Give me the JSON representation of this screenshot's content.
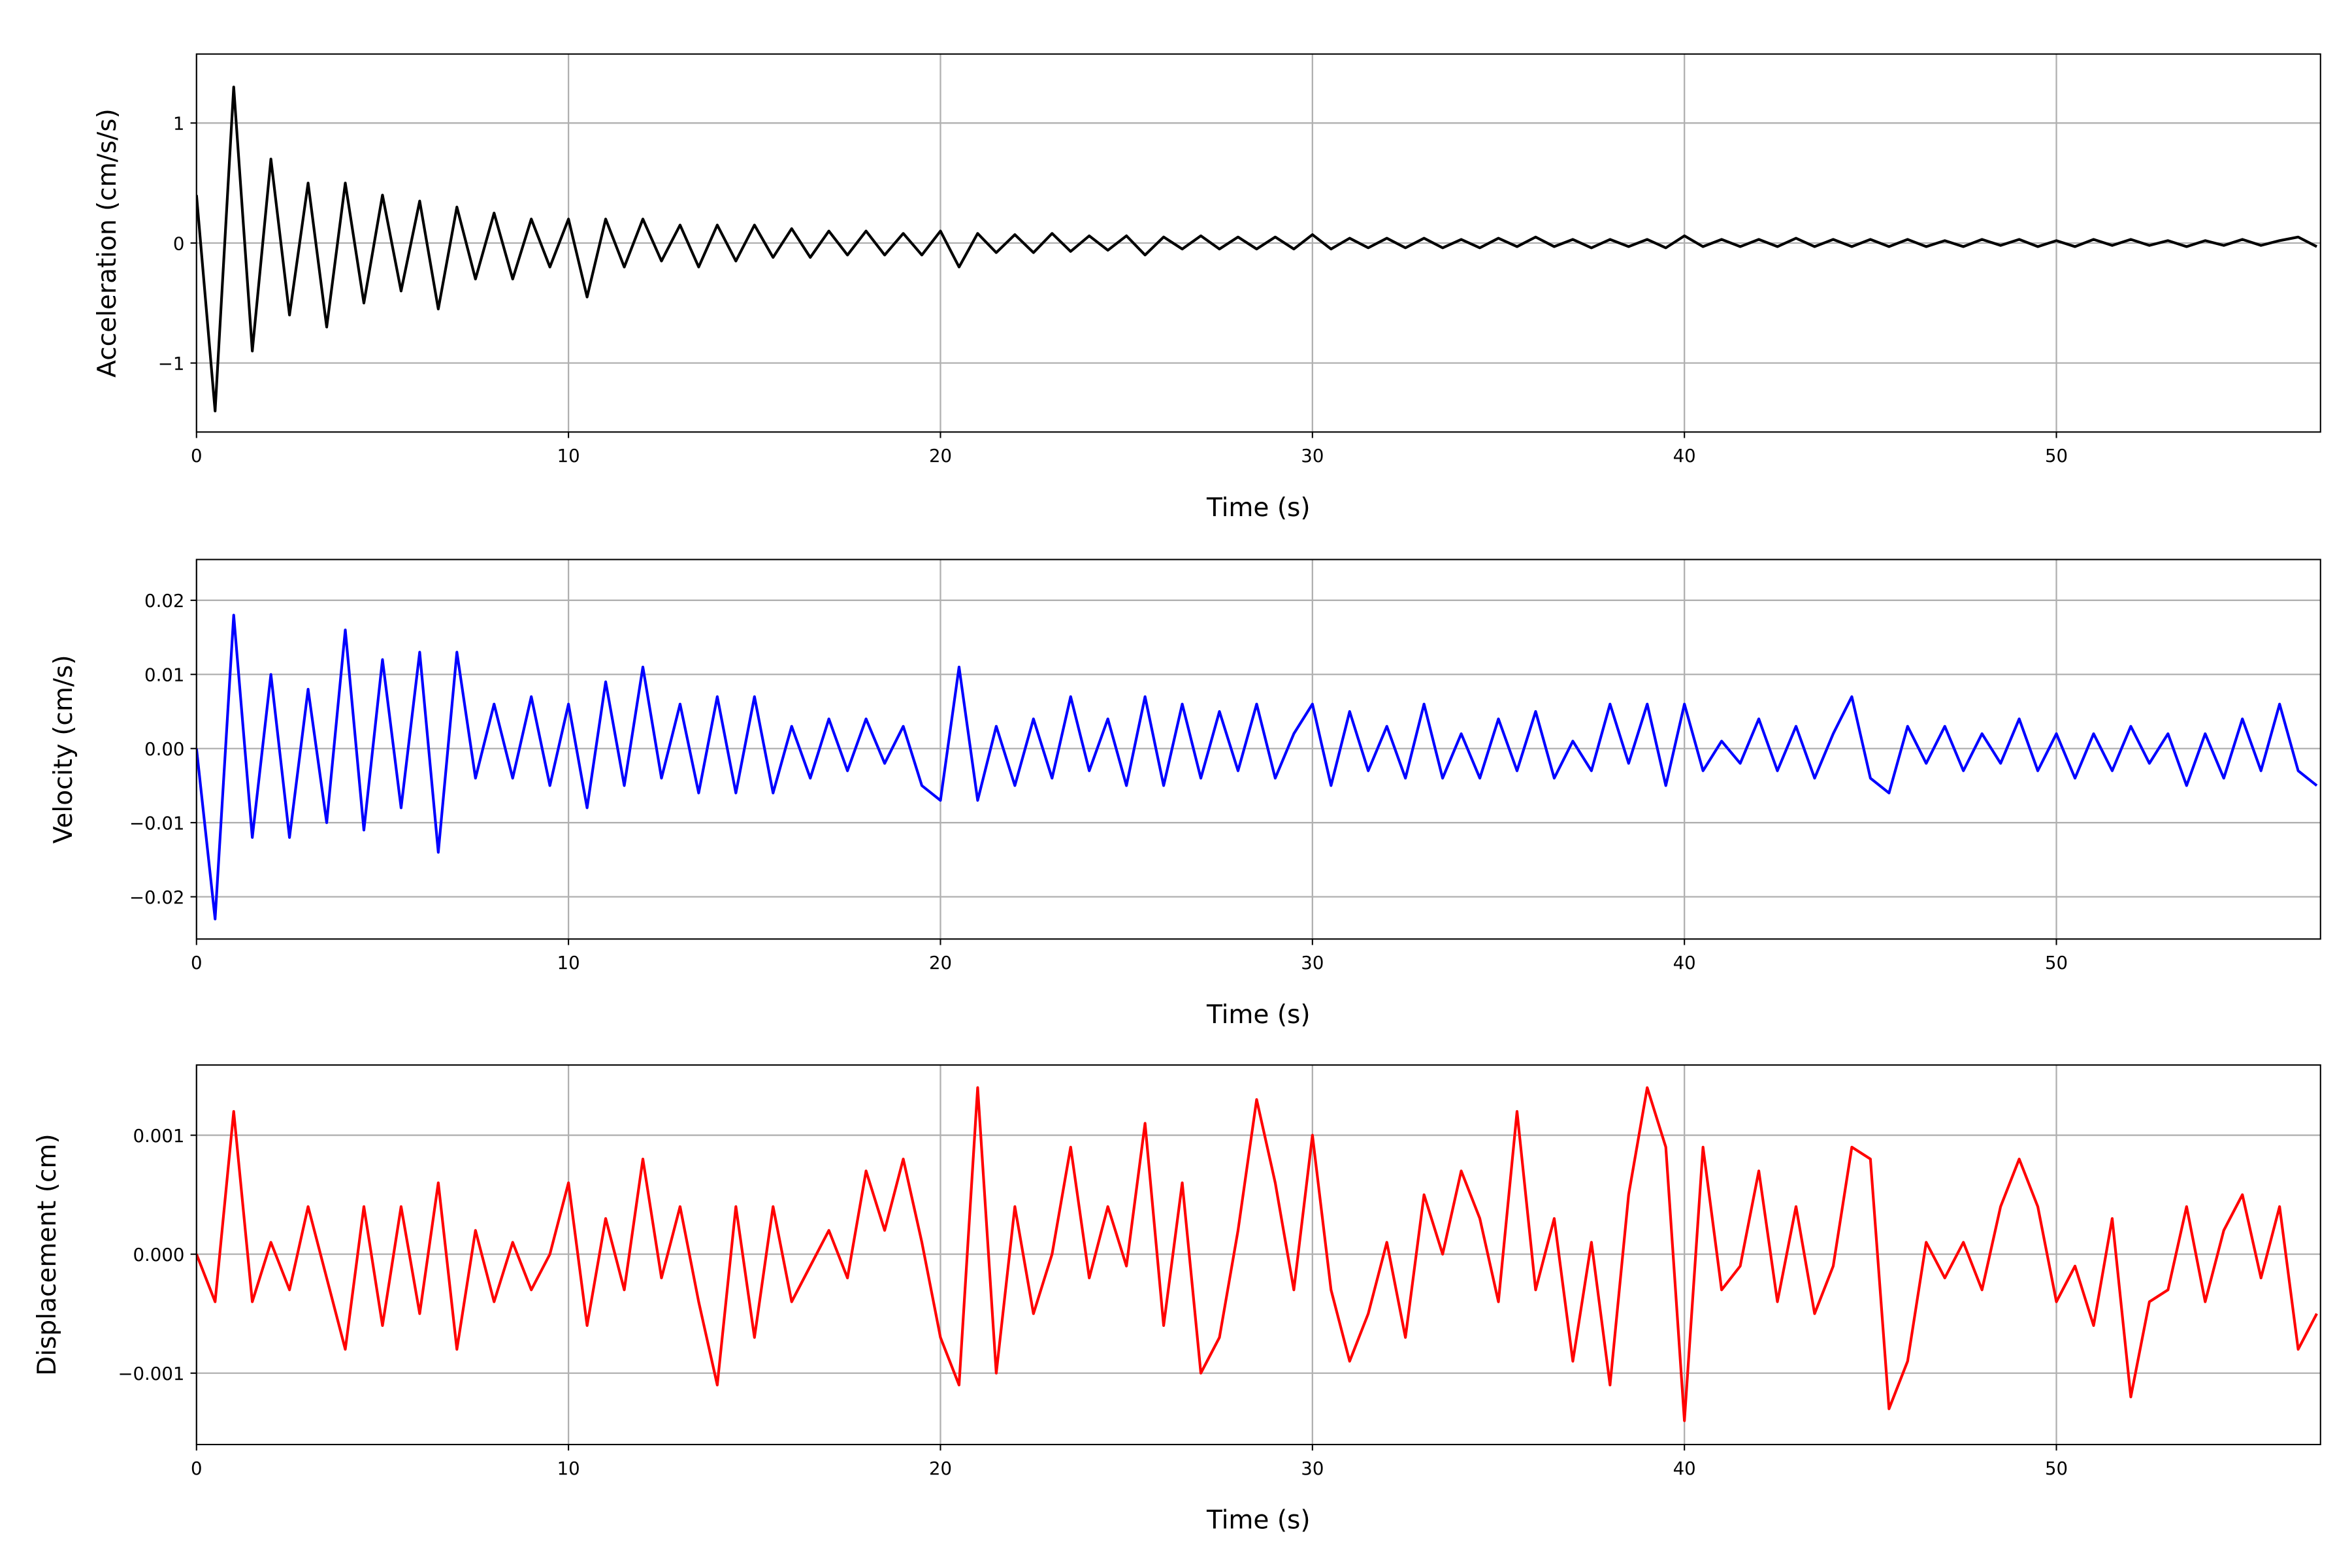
{
  "chart_data": [
    {
      "type": "line",
      "xlabel": "Time (s)",
      "ylabel": "Acceleration (cm/s/s)",
      "xlim": [
        0,
        57.1
      ],
      "xticks": [
        0,
        10,
        20,
        30,
        40,
        50
      ],
      "ylim": [
        -1.575,
        1.575
      ],
      "yticks": [
        {
          "value": -1,
          "label": "−1"
        },
        0,
        1
      ],
      "grid": true,
      "x": [
        0,
        0.5,
        1,
        1.5,
        2,
        2.5,
        3,
        3.5,
        4,
        4.5,
        5,
        5.5,
        6,
        6.5,
        7,
        7.5,
        8,
        8.5,
        9,
        9.5,
        10,
        10.5,
        11,
        11.5,
        12,
        12.5,
        13,
        13.5,
        14,
        14.5,
        15,
        15.5,
        16,
        16.5,
        17,
        17.5,
        18,
        18.5,
        19,
        19.5,
        20,
        20.5,
        21,
        21.5,
        22,
        22.5,
        23,
        23.5,
        24,
        24.5,
        25,
        25.5,
        26,
        26.5,
        27,
        27.5,
        28,
        28.5,
        29,
        29.5,
        30,
        30.5,
        31,
        31.5,
        32,
        32.5,
        33,
        33.5,
        34,
        34.5,
        35,
        35.5,
        36,
        36.5,
        37,
        37.5,
        38,
        38.5,
        39,
        39.5,
        40,
        40.5,
        41,
        41.5,
        42,
        42.5,
        43,
        43.5,
        44,
        44.5,
        45,
        45.5,
        46,
        46.5,
        47,
        47.5,
        48,
        48.5,
        49,
        49.5,
        50,
        50.5,
        51,
        51.5,
        52,
        52.5,
        53,
        53.5,
        54,
        54.5,
        55,
        55.5,
        56,
        56.5,
        57
      ],
      "series": [
        {
          "color": "#000000",
          "values": [
            0.4,
            -1.4,
            1.3,
            -0.9,
            0.7,
            -0.6,
            0.5,
            -0.7,
            0.5,
            -0.5,
            0.4,
            -0.4,
            0.35,
            -0.55,
            0.3,
            -0.3,
            0.25,
            -0.3,
            0.2,
            -0.2,
            0.2,
            -0.45,
            0.2,
            -0.2,
            0.2,
            -0.15,
            0.15,
            -0.2,
            0.15,
            -0.15,
            0.15,
            -0.12,
            0.12,
            -0.12,
            0.1,
            -0.1,
            0.1,
            -0.1,
            0.08,
            -0.1,
            0.1,
            -0.2,
            0.08,
            -0.08,
            0.07,
            -0.08,
            0.08,
            -0.07,
            0.06,
            -0.06,
            0.06,
            -0.1,
            0.05,
            -0.05,
            0.06,
            -0.05,
            0.05,
            -0.05,
            0.05,
            -0.05,
            0.07,
            -0.05,
            0.04,
            -0.04,
            0.04,
            -0.04,
            0.04,
            -0.04,
            0.03,
            -0.04,
            0.04,
            -0.03,
            0.05,
            -0.03,
            0.03,
            -0.04,
            0.03,
            -0.03,
            0.03,
            -0.04,
            0.06,
            -0.03,
            0.03,
            -0.03,
            0.03,
            -0.03,
            0.04,
            -0.03,
            0.03,
            -0.03,
            0.03,
            -0.03,
            0.03,
            -0.03,
            0.02,
            -0.03,
            0.03,
            -0.02,
            0.03,
            -0.03,
            0.02,
            -0.03,
            0.03,
            -0.02,
            0.03,
            -0.02,
            0.02,
            -0.03,
            0.02,
            -0.02,
            0.03,
            -0.02,
            0.02,
            0.05,
            -0.03
          ]
        }
      ]
    },
    {
      "type": "line",
      "xlabel": "Time (s)",
      "ylabel": "Velocity (cm/s)",
      "xlim": [
        0,
        57.1
      ],
      "xticks": [
        0,
        10,
        20,
        30,
        40,
        50
      ],
      "ylim": [
        -0.0257,
        0.0255
      ],
      "yticks": [
        {
          "value": -0.02,
          "label": "−0.02"
        },
        {
          "value": -0.01,
          "label": "−0.01"
        },
        {
          "value": 0,
          "label": "0.00"
        },
        {
          "value": 0.01,
          "label": "0.01"
        },
        {
          "value": 0.02,
          "label": "0.02"
        }
      ],
      "grid": true,
      "x": [
        0,
        0.5,
        1,
        1.5,
        2,
        2.5,
        3,
        3.5,
        4,
        4.5,
        5,
        5.5,
        6,
        6.5,
        7,
        7.5,
        8,
        8.5,
        9,
        9.5,
        10,
        10.5,
        11,
        11.5,
        12,
        12.5,
        13,
        13.5,
        14,
        14.5,
        15,
        15.5,
        16,
        16.5,
        17,
        17.5,
        18,
        18.5,
        19,
        19.5,
        20,
        20.5,
        21,
        21.5,
        22,
        22.5,
        23,
        23.5,
        24,
        24.5,
        25,
        25.5,
        26,
        26.5,
        27,
        27.5,
        28,
        28.5,
        29,
        29.5,
        30,
        30.5,
        31,
        31.5,
        32,
        32.5,
        33,
        33.5,
        34,
        34.5,
        35,
        35.5,
        36,
        36.5,
        37,
        37.5,
        38,
        38.5,
        39,
        39.5,
        40,
        40.5,
        41,
        41.5,
        42,
        42.5,
        43,
        43.5,
        44,
        44.5,
        45,
        45.5,
        46,
        46.5,
        47,
        47.5,
        48,
        48.5,
        49,
        49.5,
        50,
        50.5,
        51,
        51.5,
        52,
        52.5,
        53,
        53.5,
        54,
        54.5,
        55,
        55.5,
        56,
        56.5,
        57
      ],
      "series": [
        {
          "color": "#0000ff",
          "values": [
            0,
            -0.023,
            0.018,
            -0.012,
            0.01,
            -0.012,
            0.008,
            -0.01,
            0.016,
            -0.011,
            0.012,
            -0.008,
            0.013,
            -0.014,
            0.013,
            -0.004,
            0.006,
            -0.004,
            0.007,
            -0.005,
            0.006,
            -0.008,
            0.009,
            -0.005,
            0.011,
            -0.004,
            0.006,
            -0.006,
            0.007,
            -0.006,
            0.007,
            -0.006,
            0.003,
            -0.004,
            0.004,
            -0.003,
            0.004,
            -0.002,
            0.003,
            -0.005,
            -0.007,
            0.011,
            -0.007,
            0.003,
            -0.005,
            0.004,
            -0.004,
            0.007,
            -0.003,
            0.004,
            -0.005,
            0.007,
            -0.005,
            0.006,
            -0.004,
            0.005,
            -0.003,
            0.006,
            -0.004,
            0.002,
            0.006,
            -0.005,
            0.005,
            -0.003,
            0.003,
            -0.004,
            0.006,
            -0.004,
            0.002,
            -0.004,
            0.004,
            -0.003,
            0.005,
            -0.004,
            0.001,
            -0.003,
            0.006,
            -0.002,
            0.006,
            -0.005,
            0.006,
            -0.003,
            0.001,
            -0.002,
            0.004,
            -0.003,
            0.003,
            -0.004,
            0.002,
            0.007,
            -0.004,
            -0.006,
            0.003,
            -0.002,
            0.003,
            -0.003,
            0.002,
            -0.002,
            0.004,
            -0.003,
            0.002,
            -0.004,
            0.002,
            -0.003,
            0.003,
            -0.002,
            0.002,
            -0.005,
            0.002,
            -0.004,
            0.004,
            -0.003,
            0.006,
            -0.003,
            -0.005
          ]
        }
      ]
    },
    {
      "type": "line",
      "xlabel": "Time (s)",
      "ylabel": "Displacement (cm)",
      "xlim": [
        0,
        57.1
      ],
      "xticks": [
        0,
        10,
        20,
        30,
        40,
        50
      ],
      "ylim": [
        -0.0016,
        0.00159
      ],
      "yticks": [
        {
          "value": -0.001,
          "label": "−0.001"
        },
        {
          "value": 0,
          "label": "0.000"
        },
        0.001
      ],
      "grid": true,
      "x": [
        0,
        0.5,
        1,
        1.5,
        2,
        2.5,
        3,
        3.5,
        4,
        4.5,
        5,
        5.5,
        6,
        6.5,
        7,
        7.5,
        8,
        8.5,
        9,
        9.5,
        10,
        10.5,
        11,
        11.5,
        12,
        12.5,
        13,
        13.5,
        14,
        14.5,
        15,
        15.5,
        16,
        16.5,
        17,
        17.5,
        18,
        18.5,
        19,
        19.5,
        20,
        20.5,
        21,
        21.5,
        22,
        22.5,
        23,
        23.5,
        24,
        24.5,
        25,
        25.5,
        26,
        26.5,
        27,
        27.5,
        28,
        28.5,
        29,
        29.5,
        30,
        30.5,
        31,
        31.5,
        32,
        32.5,
        33,
        33.5,
        34,
        34.5,
        35,
        35.5,
        36,
        36.5,
        37,
        37.5,
        38,
        38.5,
        39,
        39.5,
        40,
        40.5,
        41,
        41.5,
        42,
        42.5,
        43,
        43.5,
        44,
        44.5,
        45,
        45.5,
        46,
        46.5,
        47,
        47.5,
        48,
        48.5,
        49,
        49.5,
        50,
        50.5,
        51,
        51.5,
        52,
        52.5,
        53,
        53.5,
        54,
        54.5,
        55,
        55.5,
        56,
        56.5,
        57
      ],
      "series": [
        {
          "color": "#ff0000",
          "values": [
            0,
            -0.0004,
            0.0012,
            -0.0004,
            0.0001,
            -0.0003,
            0.0004,
            -0.0002,
            -0.0008,
            0.0004,
            -0.0006,
            0.0004,
            -0.0005,
            0.0006,
            -0.0008,
            0.0002,
            -0.0004,
            0.0001,
            -0.0003,
            0,
            0.0006,
            -0.0006,
            0.0003,
            -0.0003,
            0.0008,
            -0.0002,
            0.0004,
            -0.0004,
            -0.0011,
            0.0004,
            -0.0007,
            0.0004,
            -0.0004,
            -0.0001,
            0.0002,
            -0.0002,
            0.0007,
            0.0002,
            0.0008,
            0.0001,
            -0.0007,
            -0.0011,
            0.0014,
            -0.001,
            0.0004,
            -0.0005,
            0,
            0.0009,
            -0.0002,
            0.0004,
            -0.0001,
            0.0011,
            -0.0006,
            0.0006,
            -0.001,
            -0.0007,
            0.0002,
            0.0013,
            0.0006,
            -0.0003,
            0.001,
            -0.0003,
            -0.0009,
            -0.0005,
            0.0001,
            -0.0007,
            0.0005,
            0,
            0.0007,
            0.0003,
            -0.0004,
            0.0012,
            -0.0003,
            0.0003,
            -0.0009,
            0.0001,
            -0.0011,
            0.0005,
            0.0014,
            0.0009,
            -0.0014,
            0.0009,
            -0.0003,
            -0.0001,
            0.0007,
            -0.0004,
            0.0004,
            -0.0005,
            -0.0001,
            0.0009,
            0.0008,
            -0.0013,
            -0.0009,
            0.0001,
            -0.0002,
            0.0001,
            -0.0003,
            0.0004,
            0.0008,
            0.0004,
            -0.0004,
            -0.0001,
            -0.0006,
            0.0003,
            -0.0012,
            -0.0004,
            -0.0003,
            0.0004,
            -0.0004,
            0.0002,
            0.0005,
            -0.0002,
            0.0004,
            -0.0008,
            -0.0005
          ]
        }
      ]
    }
  ]
}
